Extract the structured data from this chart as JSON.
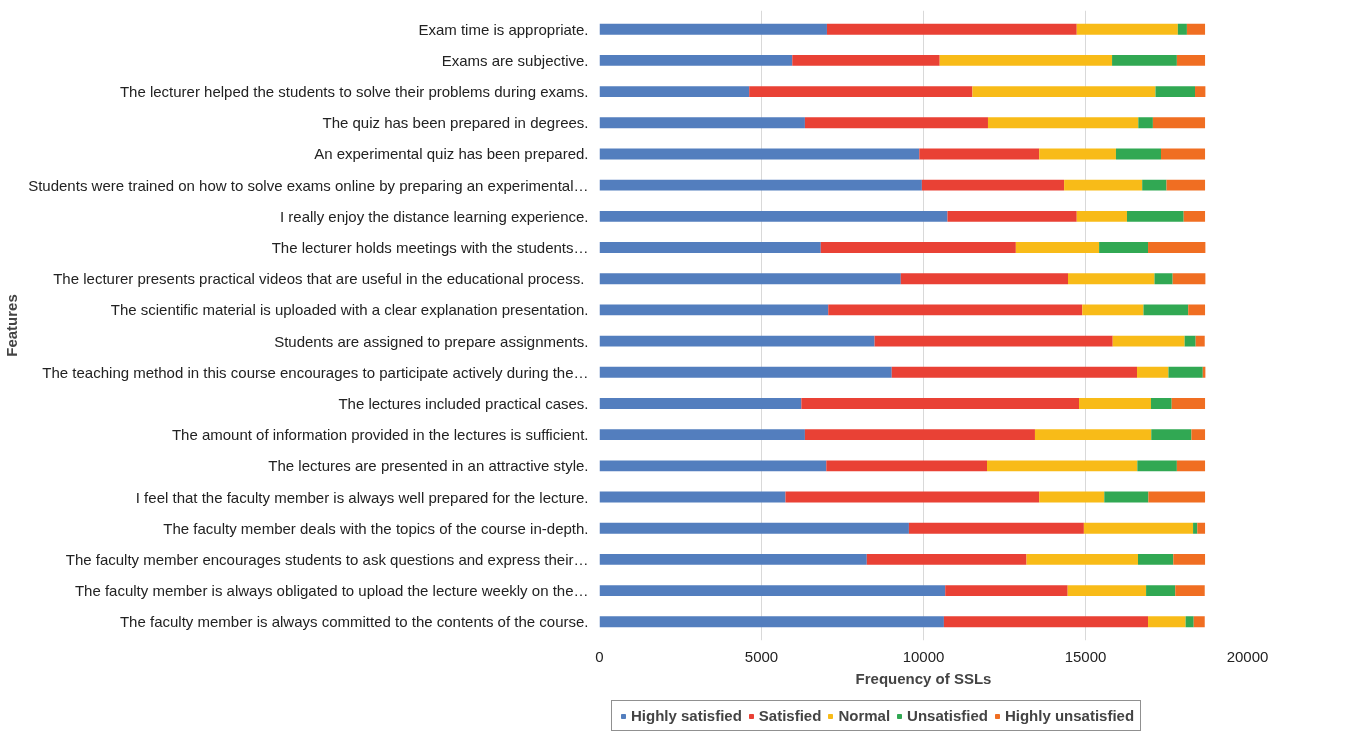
{
  "chart_data": {
    "type": "bar",
    "orientation": "horizontal",
    "stacked": true,
    "xlabel": "Frequency of SSLs",
    "ylabel": "Features",
    "categories": [
      "Exam time is appropriate.",
      "Exams are subjective.",
      "The lecturer helped the students to solve their problems during exams.",
      "The quiz has been prepared in degrees.",
      "An experimental quiz has been prepared.",
      "Students were trained on how to solve exams online by preparing an experimental…",
      "I really enjoy the distance learning experience.",
      "The lecturer holds meetings with the students…",
      "The lecturer presents practical videos that are useful in the  educational process.",
      "The scientific material is uploaded with a clear explanation presentation.",
      "Students are assigned to prepare assignments.",
      "The teaching method in this course encourages to participate actively during the…",
      "The lectures included practical cases.",
      "The amount of information provided in the lectures is sufficient.",
      "The lectures are presented in an attractive style.",
      "I feel that the faculty member is always well prepared for the lecture.",
      "The faculty member deals with the topics of the course in-depth.",
      "The faculty member encourages students to ask questions and express their…",
      "The faculty member is always obligated to upload the lecture weekly on the…",
      "The faculty member is always committed to the contents of the course."
    ],
    "series": [
      {
        "name": "Highly satisfied",
        "color": "#537ebe",
        "values": [
          7020,
          5950,
          4620,
          6340,
          9870,
          9950,
          10740,
          6830,
          9300,
          7060,
          8490,
          9020,
          6230,
          6340,
          7000,
          5740,
          9550,
          8250,
          10670,
          10630
        ]
      },
      {
        "name": "Satisfied",
        "color": "#e94135",
        "values": [
          7710,
          4550,
          6890,
          5650,
          3700,
          4390,
          3990,
          6020,
          5160,
          7840,
          7350,
          7570,
          8570,
          7100,
          4960,
          7830,
          5400,
          4930,
          3780,
          6300
        ]
      },
      {
        "name": "Normal",
        "color": "#f8bb18",
        "values": [
          3120,
          5320,
          5650,
          4640,
          2370,
          2410,
          1550,
          2570,
          2670,
          1890,
          2220,
          970,
          2220,
          3590,
          4640,
          2010,
          3370,
          3440,
          2420,
          1160
        ]
      },
      {
        "name": "Unsatisfied",
        "color": "#31a853",
        "values": [
          280,
          2000,
          1220,
          450,
          1390,
          750,
          1750,
          1510,
          560,
          1380,
          340,
          1060,
          640,
          1240,
          1220,
          1360,
          130,
          1090,
          900,
          250
        ]
      },
      {
        "name": "Highly unsatisfied",
        "color": "#f06e22",
        "values": [
          560,
          870,
          320,
          1610,
          1360,
          1190,
          660,
          1770,
          1010,
          520,
          280,
          80,
          1030,
          420,
          870,
          1750,
          240,
          980,
          910,
          340
        ]
      }
    ],
    "xlim": [
      0,
      20000
    ],
    "xticks": [
      0,
      5000,
      10000,
      15000,
      20000
    ],
    "grid": "x",
    "legend": "bottom left"
  }
}
